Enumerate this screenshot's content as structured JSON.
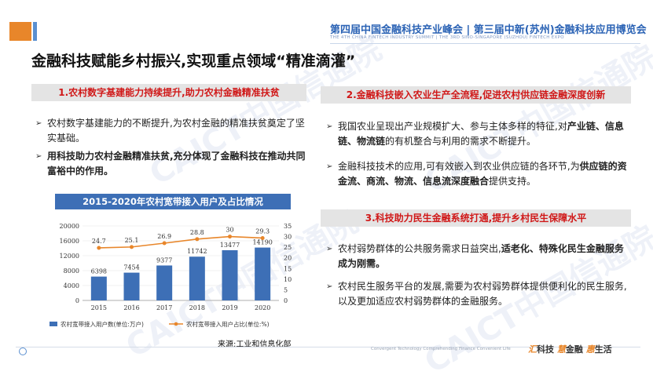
{
  "header": {
    "title": "第四届中国金融科技产业峰会 | 第三届中新(苏州)金融科技应用博览会",
    "subtitle": "THE 4TH CHINA FINTECH INDUSTRY SUMMIT | THE 3RD SINO-SINGAPORE (SUZHOU) FINTECH EXPO"
  },
  "main_title": "金融科技赋能乡村振兴,实现重点领域“精准滴灌”",
  "section1": {
    "heading": "1.农村数字基建能力持续提升,助力农村金融精准扶贫",
    "bullet1": "农村数字基建能力的不断提升,为农村金融的精准扶贫奠定了坚实基础。",
    "bullet2": "用科技助力农村金融精准扶贫,充分体现了金融科技在推动共同富裕中的作用。"
  },
  "section2": {
    "heading": "2.金融科技嵌入农业生产全流程,促进农村供应链金融深度创新",
    "b1_pre": "我国农业呈现出产业规模扩大、参与主体多样的特征,对",
    "b1_bold": "产业链、信息链、物流链",
    "b1_post": "的有机整合与利用的需求不断提升。",
    "b2_pre": "金融科技技术的应用,可有效嵌入到农业供应链的各环节,为",
    "b2_bold": "供应链的资金流、商流、物流、信息流深度融合",
    "b2_post": "提供支持。"
  },
  "section3": {
    "heading": "3.科技助力民生金融系统打通,提升乡村民生保障水平",
    "b1_pre": "农村弱势群体的公共服务需求日益突出,",
    "b1_bold": "适老化、特殊化民生金融服务成为刚需。",
    "b2": "农村民生服务平台的发展,需要为农村弱势群体提供便利化的民生服务,以及更加适应农村弱势群体的金融服务。"
  },
  "chart_data": {
    "type": "bar",
    "title": "2015-2020年农村宽带接入用户及占比情况",
    "categories": [
      "2015",
      "2016",
      "2017",
      "2018",
      "2019",
      "2020"
    ],
    "series": [
      {
        "name": "农村宽带接入用户数(单位:万户)",
        "type": "bar",
        "axis": "left",
        "values": [
          6398,
          7454,
          9377,
          11742,
          13477,
          14190
        ],
        "labels": [
          "6398",
          "7454",
          "9377",
          "11742",
          "13477",
          "14190"
        ]
      },
      {
        "name": "农村宽带接入用户占比(单位:%)",
        "type": "line",
        "axis": "right",
        "values": [
          24.7,
          25.1,
          26.9,
          28.8,
          30,
          29.3
        ],
        "labels": [
          "24.7",
          "25.1",
          "26.9",
          "28.8",
          "30",
          "29.3"
        ]
      }
    ],
    "y_left_ticks": [
      "0",
      "4000",
      "8000",
      "12000",
      "16000",
      "20000"
    ],
    "y_right_ticks": [
      "0",
      "5",
      "10",
      "15",
      "20",
      "25",
      "30",
      "35"
    ],
    "ylim_left": [
      0,
      20000
    ],
    "ylim_right": [
      0,
      35
    ],
    "bar_color": "#3d6fb6",
    "line_color": "#e8862a",
    "legend_position": "bottom"
  },
  "source": "来源:工业和信息化部",
  "footer": {
    "small": "Convergent Technology   Comprehending Finance   Convenient Life",
    "k1": "汇",
    "w1": "科技",
    "k2": "慧",
    "w2": "金融",
    "k3": "惠",
    "w3": "生活"
  },
  "watermark": "CAICT中国信通院",
  "colors": {
    "accent_red": "#d01818",
    "accent_blue": "#2b63b5",
    "accent_orange": "#e8862a"
  }
}
